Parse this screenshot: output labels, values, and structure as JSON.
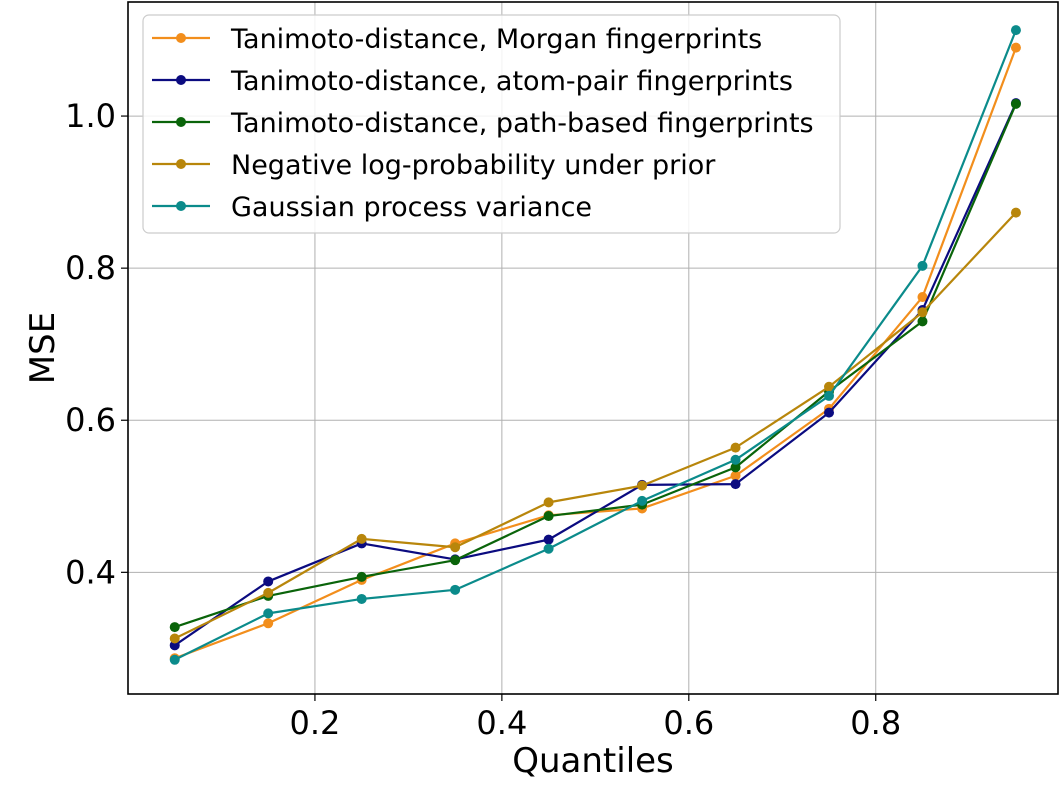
{
  "chart_data": {
    "type": "line",
    "xlabel": "Quantiles",
    "ylabel": "MSE",
    "xlim": [
      0.0,
      0.995
    ],
    "ylim": [
      0.24,
      1.15
    ],
    "xticks": [
      0.2,
      0.4,
      0.6,
      0.8
    ],
    "xtick_labels": [
      "0.2",
      "0.4",
      "0.6",
      "0.8"
    ],
    "yticks": [
      0.4,
      0.6,
      0.8,
      1.0
    ],
    "ytick_labels": [
      "0.4",
      "0.6",
      "0.8",
      "1.0"
    ],
    "grid": true,
    "legend_position": "top-left",
    "x": [
      0.05,
      0.15,
      0.25,
      0.35,
      0.45,
      0.55,
      0.65,
      0.75,
      0.85,
      0.95
    ],
    "series": [
      {
        "name": "Tanimoto-distance, Morgan fingerprints",
        "color": "#f28e1c",
        "values": [
          0.287,
          0.333,
          0.39,
          0.438,
          0.475,
          0.484,
          0.527,
          0.615,
          0.762,
          1.09
        ]
      },
      {
        "name": "Tanimoto-distance, atom-pair fingerprints",
        "color": "#0b0b80",
        "values": [
          0.304,
          0.388,
          0.438,
          0.417,
          0.443,
          0.515,
          0.516,
          0.61,
          0.745,
          1.017
        ]
      },
      {
        "name": "Tanimoto-distance, path-based fingerprints",
        "color": "#0a640a",
        "values": [
          0.328,
          0.369,
          0.394,
          0.416,
          0.474,
          0.489,
          0.538,
          0.638,
          0.73,
          1.016
        ]
      },
      {
        "name": "Negative log-probability under prior",
        "color": "#b8860b",
        "values": [
          0.313,
          0.373,
          0.444,
          0.433,
          0.492,
          0.514,
          0.564,
          0.644,
          0.742,
          0.873
        ]
      },
      {
        "name": "Gaussian process variance",
        "color": "#0b8b8b",
        "values": [
          0.285,
          0.346,
          0.365,
          0.377,
          0.431,
          0.494,
          0.548,
          0.632,
          0.803,
          1.113
        ]
      }
    ]
  }
}
